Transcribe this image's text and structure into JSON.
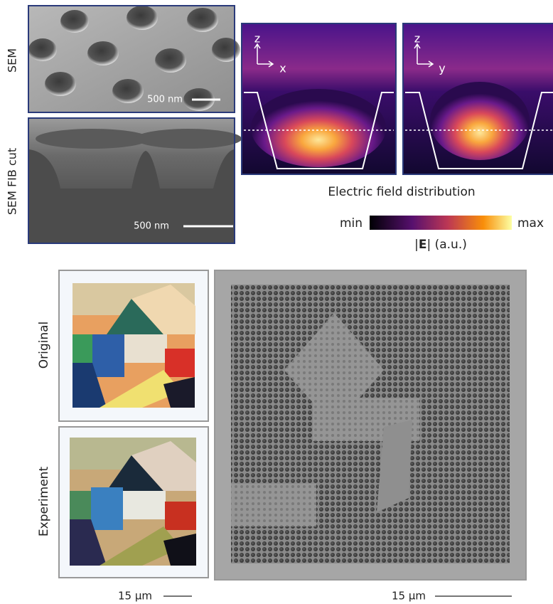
{
  "panels": {
    "sem": {
      "label": "SEM",
      "scale": "500 nm"
    },
    "fib": {
      "label": "SEM FIB cut",
      "scale": "500 nm"
    },
    "field": {
      "axes_1": [
        "z",
        "x"
      ],
      "axes_2": [
        "z",
        "y"
      ],
      "caption": "Electric field distribution",
      "colorbar": {
        "min": "min",
        "max": "max",
        "label_open": "|",
        "label_bold": "E",
        "label_close": "| (a.u.)"
      }
    }
  },
  "images": {
    "original": "Original",
    "experiment": "Experiment",
    "scale_left": "15 µm",
    "scale_right": "15 µm"
  }
}
